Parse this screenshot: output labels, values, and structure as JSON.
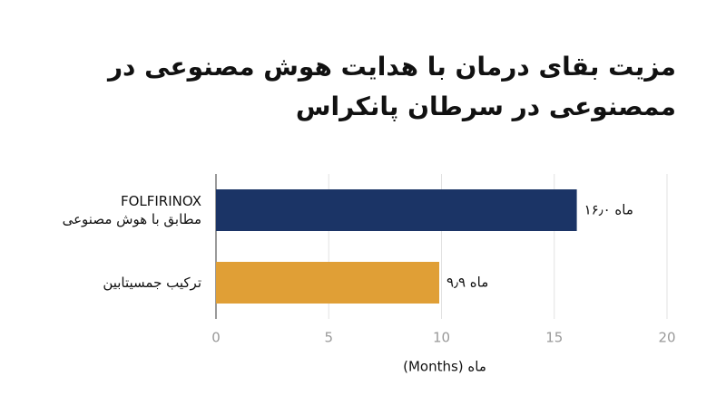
{
  "chart_data": {
    "type": "barh",
    "title": "مزیت بقای درمان با هدایت هوش مصنوعی در\nممصنوعی در سرطان پانکراس",
    "categories": [
      "FOLFIRINOX\nمطابق با هوش مصنوعی",
      "ترکیب جمسیتابین"
    ],
    "values": [
      16.0,
      9.9
    ],
    "value_labels": [
      "۱۶٫۰ ماه",
      "۹٫۹ ماه"
    ],
    "colors": [
      "#1b3466",
      "#e09f36"
    ],
    "xlabel": "ماه (Months)",
    "xlim": [
      0,
      20
    ],
    "xticks": [
      0,
      5,
      10,
      15,
      20
    ],
    "grid": true
  }
}
